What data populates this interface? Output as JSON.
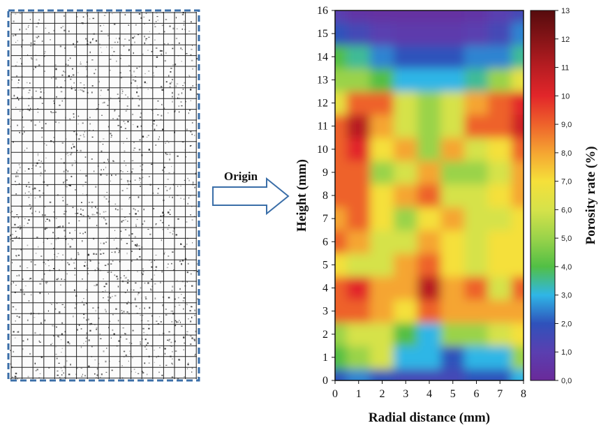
{
  "chart_data": {
    "type": "contour",
    "annotation": "Origin",
    "xlabel": "Radial distance (mm)",
    "ylabel": "Height (mm)",
    "colorbar_label": "Porosity rate (%)",
    "xlim": [
      0,
      8
    ],
    "ylim": [
      0,
      16
    ],
    "xticks": [
      0,
      1,
      2,
      3,
      4,
      5,
      6,
      7,
      8
    ],
    "yticks": [
      0,
      1,
      2,
      3,
      4,
      5,
      6,
      7,
      8,
      9,
      10,
      11,
      12,
      13,
      14,
      15,
      16
    ],
    "x": [
      0,
      1,
      2,
      3,
      4,
      5,
      6,
      7,
      8
    ],
    "y": [
      0,
      1,
      2,
      3,
      4,
      5,
      6,
      7,
      8,
      9,
      10,
      11,
      12,
      13,
      14,
      15,
      16
    ],
    "z": [
      [
        2,
        2.5,
        2,
        1.5,
        1.5,
        1.5,
        2,
        2,
        3
      ],
      [
        4,
        5,
        6,
        3,
        3,
        2,
        3,
        3,
        5
      ],
      [
        5,
        6,
        6,
        4,
        3,
        5,
        5,
        6,
        7
      ],
      [
        9,
        9,
        8,
        7,
        9,
        8,
        8,
        8,
        8
      ],
      [
        9,
        10,
        8,
        8,
        11,
        8,
        9,
        6,
        9
      ],
      [
        7,
        6,
        6,
        8,
        9,
        7,
        6,
        7,
        7
      ],
      [
        9,
        8,
        6,
        6,
        8,
        7,
        6,
        7,
        7
      ],
      [
        8,
        9,
        7,
        5,
        7,
        8,
        6,
        6,
        7
      ],
      [
        9,
        9,
        7,
        8,
        9,
        6,
        6,
        7,
        8
      ],
      [
        9,
        9,
        5,
        6,
        8,
        5,
        5,
        6,
        8
      ],
      [
        9,
        10,
        7,
        8,
        5,
        8,
        6,
        7,
        9
      ],
      [
        9,
        11,
        8,
        6,
        5,
        6,
        9,
        9,
        10.5
      ],
      [
        6.5,
        9,
        9,
        6,
        5,
        6,
        8,
        9,
        10
      ],
      [
        5,
        5,
        4,
        3,
        3,
        3,
        3.5,
        5,
        6.5
      ],
      [
        4,
        3.5,
        2.5,
        2,
        2,
        2,
        2.5,
        2.5,
        3.5
      ],
      [
        2,
        1.5,
        1,
        0.8,
        0.8,
        0.8,
        1,
        1.5,
        2.5
      ],
      [
        1,
        0.5,
        0.3,
        0.3,
        0.3,
        0.3,
        0.5,
        1,
        1.5
      ]
    ],
    "zlim": [
      0,
      13
    ],
    "zticks": [
      {
        "value": 0,
        "label": "0,0"
      },
      {
        "value": 1,
        "label": "1,0"
      },
      {
        "value": 2,
        "label": "2,0"
      },
      {
        "value": 3,
        "label": "3,0"
      },
      {
        "value": 4,
        "label": "4,0"
      },
      {
        "value": 5,
        "label": "5,0"
      },
      {
        "value": 6,
        "label": "6,0"
      },
      {
        "value": 7,
        "label": "7,0"
      },
      {
        "value": 8,
        "label": "8,0"
      },
      {
        "value": 9,
        "label": "9,0"
      },
      10,
      11,
      12,
      13
    ],
    "colorscale": [
      "#6a2a9a",
      "#5a3fb0",
      "#2f52bb",
      "#2fb6e6",
      "#52bf45",
      "#9ad34a",
      "#d6e24a",
      "#f5e03a",
      "#f5a532",
      "#ee622b",
      "#e2262a",
      "#b81d22",
      "#861417",
      "#560b0d"
    ]
  }
}
